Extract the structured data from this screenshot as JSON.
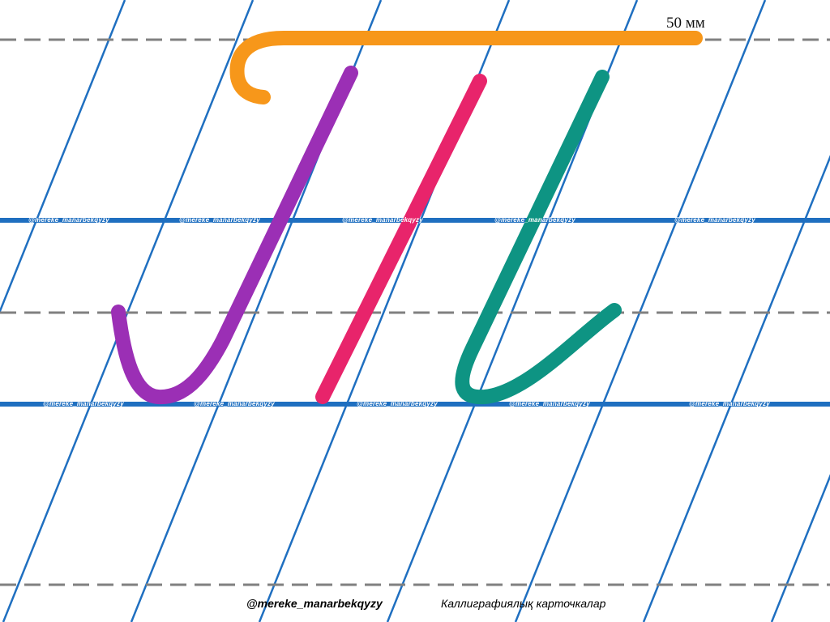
{
  "size_label": "50 мм",
  "watermark": "@mereke_manarbekqyzy",
  "footer": {
    "handle": "@mereke_manarbekqyzy",
    "caption": "Каллиграфиялық карточкалар"
  },
  "colors": {
    "ruling_solid": "#1f6fc0",
    "ruling_dashed": "#808080",
    "slant_lines": "#1f6fc0",
    "stroke_top_bar": "#f7971a",
    "stroke_left_stem": "#9b2fb5",
    "stroke_middle_stem": "#e8246b",
    "stroke_right_stem": "#0e9483"
  }
}
